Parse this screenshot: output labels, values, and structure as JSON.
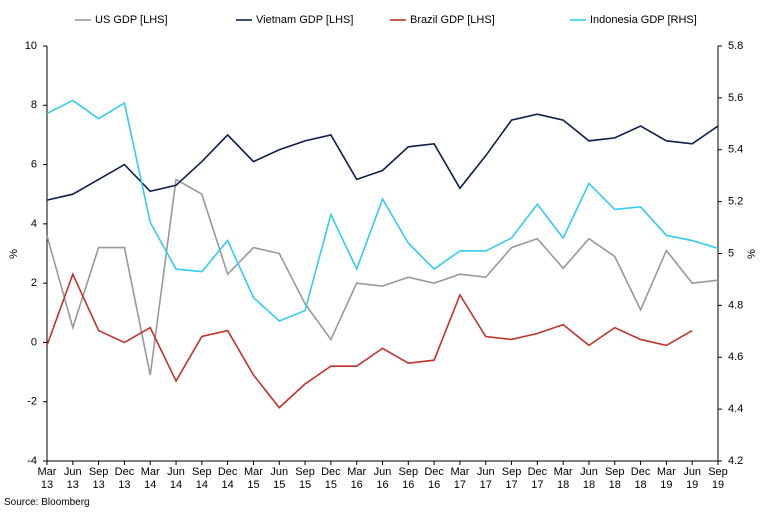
{
  "chart_data": {
    "type": "line",
    "categories": [
      "Mar 13",
      "Jun 13",
      "Sep 13",
      "Dec 13",
      "Mar 14",
      "Jun 14",
      "Sep 14",
      "Dec 14",
      "Mar 15",
      "Jun 15",
      "Sep 15",
      "Dec 15",
      "Mar 16",
      "Jun 16",
      "Sep 16",
      "Dec 16",
      "Mar 17",
      "Jun 17",
      "Sep 17",
      "Dec 17",
      "Mar 18",
      "Jun 18",
      "Sep 18",
      "Dec 18",
      "Mar 19",
      "Jun 19",
      "Sep 19"
    ],
    "series": [
      {
        "name": "US GDP [LHS]",
        "color": "#999999",
        "values": [
          3.6,
          0.5,
          3.2,
          3.2,
          -1.1,
          5.5,
          5.0,
          2.3,
          3.2,
          3.0,
          1.3,
          0.1,
          2.0,
          1.9,
          2.2,
          2.0,
          2.3,
          2.2,
          3.2,
          3.5,
          2.5,
          3.5,
          2.9,
          1.1,
          3.1,
          2.0,
          2.1
        ]
      },
      {
        "name": "Vietnam GDP [LHS]",
        "color": "#0d1f4a",
        "values": [
          4.8,
          5.0,
          5.5,
          6.0,
          5.1,
          5.3,
          6.1,
          7.0,
          6.1,
          6.5,
          6.8,
          7.0,
          5.5,
          5.8,
          6.6,
          6.7,
          5.2,
          6.3,
          7.5,
          7.7,
          7.5,
          6.8,
          6.9,
          7.3,
          6.8,
          6.7,
          7.3
        ]
      },
      {
        "name": "Brazil GDP [LHS]",
        "color": "#c0332b",
        "values": [
          -0.1,
          2.3,
          0.4,
          0.0,
          0.5,
          -1.3,
          0.2,
          0.4,
          -1.1,
          -2.2,
          -1.4,
          -0.8,
          -0.8,
          -0.2,
          -0.7,
          -0.6,
          1.6,
          0.2,
          0.1,
          0.3,
          0.6,
          -0.1,
          0.5,
          0.1,
          -0.1,
          0.4,
          null
        ]
      },
      {
        "name": "Indonesia GDP [RHS]",
        "color": "#33ccee",
        "axis": "y2",
        "values": [
          5.54,
          5.59,
          5.52,
          5.58,
          5.12,
          4.94,
          4.93,
          5.05,
          4.83,
          4.74,
          4.78,
          5.15,
          4.94,
          5.21,
          5.04,
          4.94,
          5.01,
          5.01,
          5.06,
          5.19,
          5.06,
          5.27,
          5.17,
          5.18,
          5.07,
          5.05,
          5.02
        ]
      }
    ],
    "y_label": "%",
    "y2_label": "%",
    "ylim": [
      -4,
      10
    ],
    "yticks": [
      -4,
      -2,
      0,
      2,
      4,
      6,
      8,
      10
    ],
    "y2lim": [
      4.2,
      5.8
    ],
    "y2ticks": [
      4.2,
      4.4,
      4.6,
      4.8,
      5,
      5.2,
      5.4,
      5.6,
      5.8
    ],
    "grid": false,
    "source": "Source: Bloomberg"
  }
}
